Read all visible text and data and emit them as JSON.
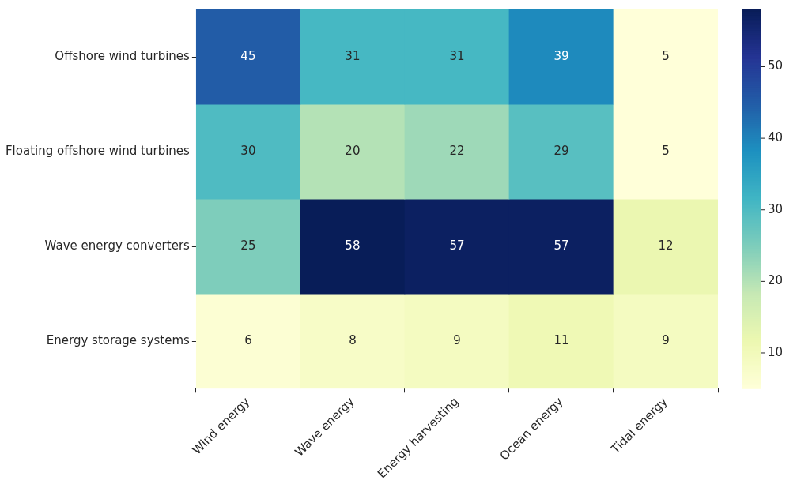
{
  "chart_data": {
    "type": "heatmap",
    "categories": [
      "Wind energy",
      "Wave energy",
      "Energy harvesting",
      "Ocean energy",
      "Tidal energy"
    ],
    "y_categories": [
      "Offshore wind turbines",
      "Floating offshore wind turbines",
      "Wave energy converters",
      "Energy storage systems"
    ],
    "cells": [
      [
        45,
        31,
        31,
        39,
        5
      ],
      [
        30,
        20,
        22,
        29,
        5
      ],
      [
        25,
        58,
        57,
        57,
        12
      ],
      [
        6,
        8,
        9,
        11,
        9
      ]
    ],
    "clim": [
      5,
      58
    ],
    "cticks": [
      10,
      20,
      30,
      40,
      50
    ],
    "data_labels": true
  }
}
